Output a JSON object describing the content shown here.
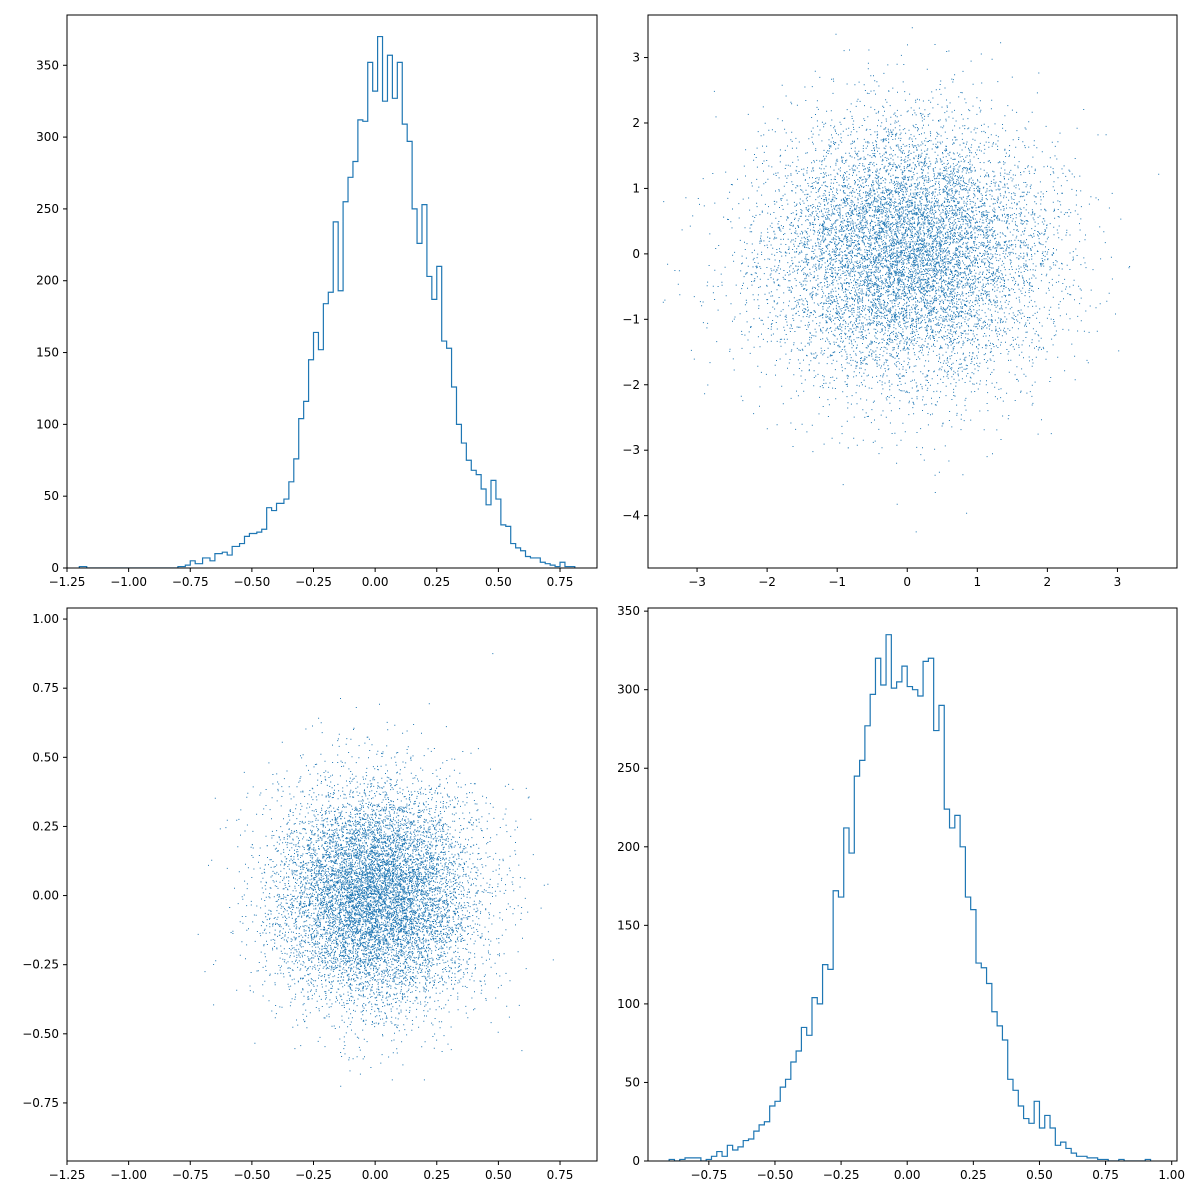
{
  "chart_data": [
    {
      "type": "histogram",
      "panel": "top-left",
      "histtype": "step",
      "color": "#1f77b4",
      "xlim": [
        -1.25,
        0.9
      ],
      "ylim": [
        0,
        385
      ],
      "xticks": [
        -1.25,
        -1.0,
        -0.75,
        -0.5,
        -0.25,
        0.0,
        0.25,
        0.5,
        0.75
      ],
      "xtick_labels": [
        "−1.25",
        "−1.00",
        "−0.75",
        "−0.50",
        "−0.25",
        "0.00",
        "0.25",
        "0.50",
        "0.75"
      ],
      "yticks": [
        0,
        50,
        100,
        150,
        200,
        250,
        300,
        350
      ],
      "ytick_labels": [
        "0",
        "50",
        "100",
        "150",
        "200",
        "250",
        "300",
        "350"
      ],
      "bins": [
        [
          -1.2,
          1
        ],
        [
          -1.17,
          0
        ],
        [
          -0.85,
          0
        ],
        [
          -0.8,
          1
        ],
        [
          -0.77,
          2
        ],
        [
          -0.75,
          5
        ],
        [
          -0.73,
          3
        ],
        [
          -0.7,
          7
        ],
        [
          -0.67,
          5
        ],
        [
          -0.65,
          10
        ],
        [
          -0.62,
          11
        ],
        [
          -0.6,
          9
        ],
        [
          -0.58,
          15
        ],
        [
          -0.55,
          17
        ],
        [
          -0.53,
          22
        ],
        [
          -0.51,
          24
        ],
        [
          -0.48,
          25
        ],
        [
          -0.46,
          27
        ],
        [
          -0.44,
          42
        ],
        [
          -0.42,
          40
        ],
        [
          -0.4,
          45
        ],
        [
          -0.37,
          48
        ],
        [
          -0.35,
          60
        ],
        [
          -0.33,
          76
        ],
        [
          -0.31,
          104
        ],
        [
          -0.29,
          116
        ],
        [
          -0.27,
          145
        ],
        [
          -0.25,
          164
        ],
        [
          -0.23,
          152
        ],
        [
          -0.21,
          184
        ],
        [
          -0.19,
          192
        ],
        [
          -0.17,
          241
        ],
        [
          -0.15,
          193
        ],
        [
          -0.13,
          255
        ],
        [
          -0.11,
          272
        ],
        [
          -0.09,
          283
        ],
        [
          -0.07,
          312
        ],
        [
          -0.05,
          311
        ],
        [
          -0.03,
          352
        ],
        [
          -0.01,
          332
        ],
        [
          0.01,
          370
        ],
        [
          0.03,
          325
        ],
        [
          0.05,
          357
        ],
        [
          0.07,
          327
        ],
        [
          0.09,
          352
        ],
        [
          0.11,
          309
        ],
        [
          0.13,
          297
        ],
        [
          0.15,
          250
        ],
        [
          0.17,
          226
        ],
        [
          0.19,
          253
        ],
        [
          0.21,
          203
        ],
        [
          0.23,
          187
        ],
        [
          0.25,
          210
        ],
        [
          0.27,
          158
        ],
        [
          0.29,
          153
        ],
        [
          0.31,
          126
        ],
        [
          0.33,
          100
        ],
        [
          0.35,
          87
        ],
        [
          0.37,
          75
        ],
        [
          0.39,
          68
        ],
        [
          0.41,
          65
        ],
        [
          0.43,
          55
        ],
        [
          0.45,
          44
        ],
        [
          0.47,
          61
        ],
        [
          0.49,
          48
        ],
        [
          0.51,
          30
        ],
        [
          0.53,
          29
        ],
        [
          0.55,
          17
        ],
        [
          0.57,
          14
        ],
        [
          0.59,
          12
        ],
        [
          0.61,
          8
        ],
        [
          0.63,
          7
        ],
        [
          0.65,
          7
        ],
        [
          0.67,
          4
        ],
        [
          0.69,
          3
        ],
        [
          0.71,
          2
        ],
        [
          0.73,
          1
        ],
        [
          0.75,
          4
        ],
        [
          0.77,
          1
        ],
        [
          0.79,
          1
        ]
      ]
    },
    {
      "type": "scatter",
      "panel": "top-right",
      "marker": "pixel",
      "color": "#1f77b4",
      "distribution": "bivariate normal, mean 0, sd 1",
      "n_points": 10000,
      "xlim": [
        -3.7,
        3.85
      ],
      "ylim": [
        -4.8,
        3.65
      ],
      "xticks": [
        -3,
        -2,
        -1,
        0,
        1,
        2,
        3
      ],
      "xtick_labels": [
        "−3",
        "−2",
        "−1",
        "0",
        "1",
        "2",
        "3"
      ],
      "yticks": [
        -4,
        -3,
        -2,
        -1,
        0,
        1,
        2,
        3
      ],
      "ytick_labels": [
        "−4",
        "−3",
        "−2",
        "−1",
        "0",
        "1",
        "2",
        "3"
      ]
    },
    {
      "type": "scatter",
      "panel": "bottom-left",
      "marker": "pixel",
      "color": "#1f77b4",
      "distribution": "bivariate normal, mean 0, sd 0.2",
      "n_points": 10000,
      "xlim": [
        -1.25,
        0.9
      ],
      "ylim": [
        -0.96,
        1.04
      ],
      "xticks": [
        -1.25,
        -1.0,
        -0.75,
        -0.5,
        -0.25,
        0.0,
        0.25,
        0.5,
        0.75
      ],
      "xtick_labels": [
        "−1.25",
        "−1.00",
        "−0.75",
        "−0.50",
        "−0.25",
        "0.00",
        "0.25",
        "0.50",
        "0.75"
      ],
      "yticks": [
        -0.75,
        -0.5,
        -0.25,
        0.0,
        0.25,
        0.5,
        0.75,
        1.0
      ],
      "ytick_labels": [
        "−0.75",
        "−0.50",
        "−0.25",
        "0.00",
        "0.25",
        "0.50",
        "0.75",
        "1.00"
      ]
    },
    {
      "type": "histogram",
      "panel": "bottom-right",
      "histtype": "step",
      "color": "#1f77b4",
      "xlim": [
        -0.98,
        1.02
      ],
      "ylim": [
        0,
        352
      ],
      "xticks": [
        -0.75,
        -0.5,
        -0.25,
        0.0,
        0.25,
        0.5,
        0.75,
        1.0
      ],
      "xtick_labels": [
        "−0.75",
        "−0.50",
        "−0.25",
        "0.00",
        "0.25",
        "0.50",
        "0.75",
        "1.00"
      ],
      "yticks": [
        0,
        50,
        100,
        150,
        200,
        250,
        300,
        350
      ],
      "ytick_labels": [
        "0",
        "50",
        "100",
        "150",
        "200",
        "250",
        "300",
        "350"
      ],
      "bins": [
        [
          -0.9,
          1
        ],
        [
          -0.88,
          0
        ],
        [
          -0.86,
          1
        ],
        [
          -0.84,
          2
        ],
        [
          -0.82,
          2
        ],
        [
          -0.8,
          2
        ],
        [
          -0.78,
          0
        ],
        [
          -0.76,
          1
        ],
        [
          -0.74,
          3
        ],
        [
          -0.72,
          6
        ],
        [
          -0.7,
          3
        ],
        [
          -0.68,
          10
        ],
        [
          -0.66,
          7
        ],
        [
          -0.64,
          9
        ],
        [
          -0.62,
          13
        ],
        [
          -0.6,
          14
        ],
        [
          -0.58,
          19
        ],
        [
          -0.56,
          23
        ],
        [
          -0.54,
          25
        ],
        [
          -0.52,
          35
        ],
        [
          -0.5,
          38
        ],
        [
          -0.48,
          47
        ],
        [
          -0.46,
          52
        ],
        [
          -0.44,
          63
        ],
        [
          -0.42,
          70
        ],
        [
          -0.4,
          85
        ],
        [
          -0.38,
          80
        ],
        [
          -0.36,
          104
        ],
        [
          -0.34,
          100
        ],
        [
          -0.32,
          125
        ],
        [
          -0.3,
          122
        ],
        [
          -0.28,
          172
        ],
        [
          -0.26,
          168
        ],
        [
          -0.24,
          212
        ],
        [
          -0.22,
          196
        ],
        [
          -0.2,
          245
        ],
        [
          -0.18,
          255
        ],
        [
          -0.16,
          277
        ],
        [
          -0.14,
          297
        ],
        [
          -0.12,
          320
        ],
        [
          -0.1,
          303
        ],
        [
          -0.08,
          335
        ],
        [
          -0.06,
          301
        ],
        [
          -0.04,
          305
        ],
        [
          -0.02,
          315
        ],
        [
          0.0,
          302
        ],
        [
          0.02,
          300
        ],
        [
          0.04,
          296
        ],
        [
          0.06,
          318
        ],
        [
          0.08,
          320
        ],
        [
          0.1,
          274
        ],
        [
          0.12,
          290
        ],
        [
          0.14,
          224
        ],
        [
          0.16,
          212
        ],
        [
          0.18,
          220
        ],
        [
          0.2,
          200
        ],
        [
          0.22,
          168
        ],
        [
          0.24,
          160
        ],
        [
          0.26,
          126
        ],
        [
          0.28,
          123
        ],
        [
          0.3,
          113
        ],
        [
          0.32,
          95
        ],
        [
          0.34,
          86
        ],
        [
          0.36,
          77
        ],
        [
          0.38,
          52
        ],
        [
          0.4,
          45
        ],
        [
          0.42,
          35
        ],
        [
          0.44,
          27
        ],
        [
          0.46,
          24
        ],
        [
          0.48,
          38
        ],
        [
          0.5,
          21
        ],
        [
          0.52,
          29
        ],
        [
          0.54,
          21
        ],
        [
          0.56,
          10
        ],
        [
          0.58,
          12
        ],
        [
          0.6,
          8
        ],
        [
          0.62,
          5
        ],
        [
          0.64,
          3
        ],
        [
          0.66,
          3
        ],
        [
          0.68,
          2
        ],
        [
          0.7,
          2
        ],
        [
          0.72,
          1
        ],
        [
          0.74,
          1
        ],
        [
          0.76,
          0
        ],
        [
          0.78,
          0
        ],
        [
          0.8,
          1
        ],
        [
          0.82,
          0
        ],
        [
          0.9,
          1
        ]
      ]
    }
  ]
}
